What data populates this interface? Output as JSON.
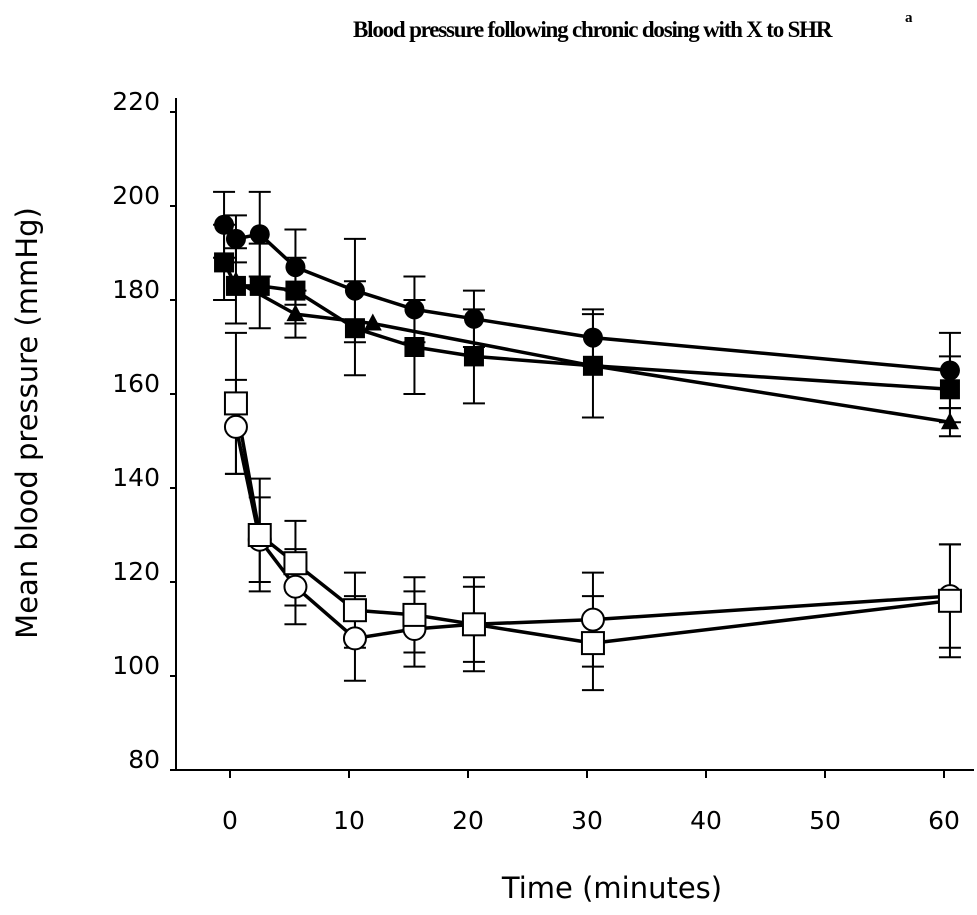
{
  "chart_data": {
    "type": "line",
    "title": "Blood pressure following chronic dosing with X to SHR",
    "title_superscript": "a",
    "xlabel": "Time (minutes)",
    "ylabel": "Mean blood pressure (mmHg)",
    "xlim": [
      -5,
      61
    ],
    "ylim": [
      80,
      220
    ],
    "x_ticks": [
      0,
      10,
      20,
      30,
      40,
      50,
      60
    ],
    "y_ticks": [
      80,
      100,
      120,
      140,
      160,
      180,
      200,
      220
    ],
    "grid": false,
    "legend": "none",
    "series": [
      {
        "marker": "filled-circle",
        "x": [
          -0.5,
          0.5,
          2.5,
          5.5,
          10.5,
          15.5,
          20.5,
          30.5,
          60.5
        ],
        "y": [
          196,
          193,
          194,
          187,
          182,
          178,
          176,
          172,
          165
        ],
        "err": [
          7,
          5,
          9,
          8,
          11,
          7,
          6,
          6,
          8
        ]
      },
      {
        "marker": "filled-square",
        "x": [
          -0.5,
          0.5,
          2.5,
          5.5,
          10.5,
          15.5,
          20.5,
          30.5,
          60.5
        ],
        "y": [
          188,
          183,
          183,
          182,
          174,
          170,
          168,
          166,
          161
        ],
        "err": [
          8,
          8,
          9,
          7,
          10,
          10,
          10,
          11,
          7
        ]
      },
      {
        "marker": "filled-triangle",
        "x": [
          0.5,
          5.5,
          12,
          30.5,
          60.5
        ],
        "y": [
          184,
          177,
          175,
          166,
          154
        ],
        "err": [
          0,
          5,
          0,
          0,
          3
        ]
      },
      {
        "marker": "open-circle",
        "x": [
          0.5,
          2.5,
          5.5,
          10.5,
          15.5,
          20.5,
          30.5,
          60.5
        ],
        "y": [
          153,
          129,
          119,
          108,
          110,
          111,
          112,
          117
        ],
        "err": [
          10,
          9,
          8,
          9,
          8,
          8,
          10,
          11
        ]
      },
      {
        "marker": "open-square",
        "x": [
          0.5,
          2.5,
          5.5,
          10.5,
          15.5,
          20.5,
          30.5,
          60.5
        ],
        "y": [
          158,
          130,
          124,
          114,
          113,
          111,
          107,
          116
        ],
        "err": [
          15,
          12,
          9,
          8,
          8,
          10,
          10,
          12
        ]
      }
    ]
  }
}
